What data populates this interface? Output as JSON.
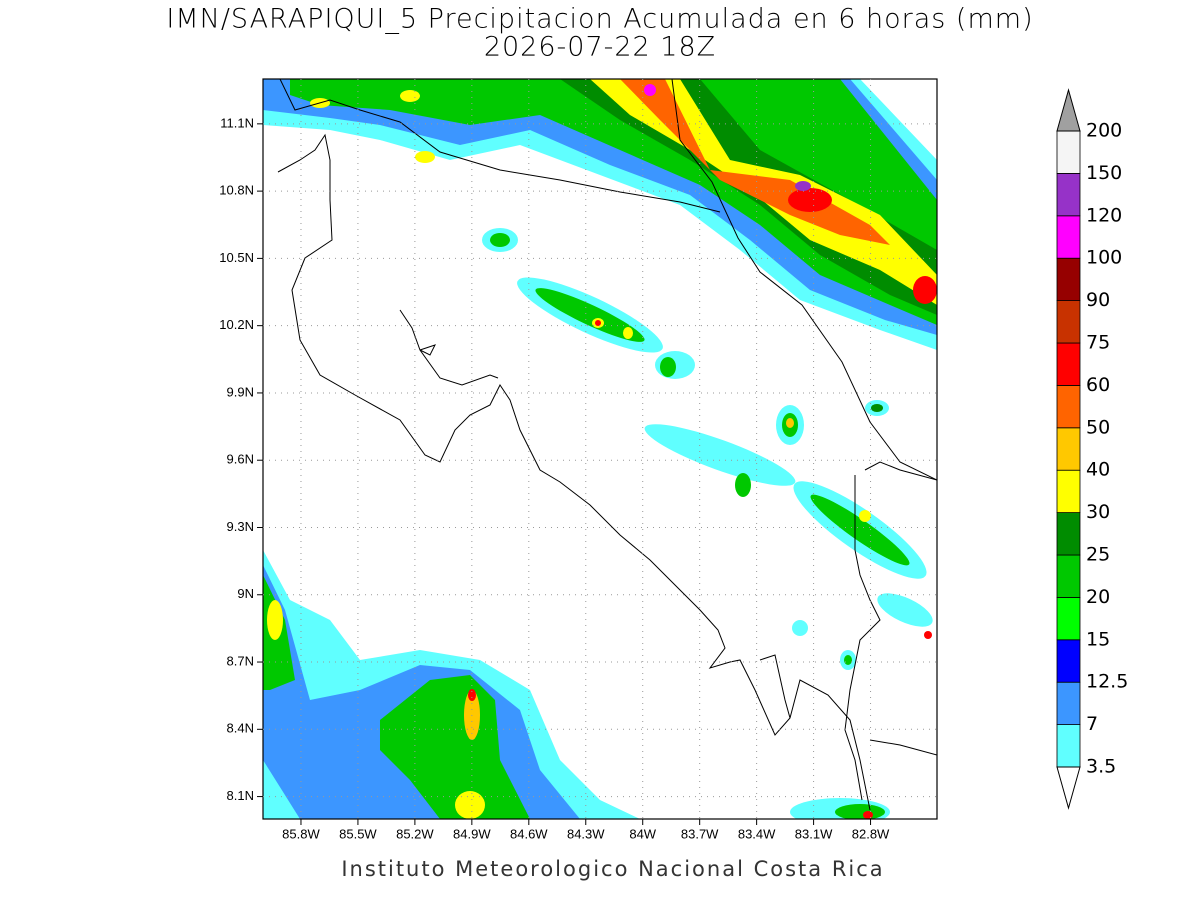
{
  "header": {
    "title": "IMN/SARAPIQUI_5 Precipitacion Acumulada en 6 horas (mm)",
    "subtitle": "2026-07-22 18Z"
  },
  "map": {
    "lon_range": [
      -86.0,
      -82.45
    ],
    "lat_range": [
      8.0,
      11.3
    ],
    "lon_ticks": [
      {
        "value": -85.8,
        "label": "85.8W"
      },
      {
        "value": -85.5,
        "label": "85.5W"
      },
      {
        "value": -85.2,
        "label": "85.2W"
      },
      {
        "value": -84.9,
        "label": "84.9W"
      },
      {
        "value": -84.6,
        "label": "84.6W"
      },
      {
        "value": -84.3,
        "label": "84.3W"
      },
      {
        "value": -84.0,
        "label": "84W"
      },
      {
        "value": -83.7,
        "label": "83.7W"
      },
      {
        "value": -83.4,
        "label": "83.4W"
      },
      {
        "value": -83.1,
        "label": "83.1W"
      },
      {
        "value": -82.8,
        "label": "82.8W"
      }
    ],
    "lat_ticks": [
      {
        "value": 11.1,
        "label": "11.1N"
      },
      {
        "value": 10.8,
        "label": "10.8N"
      },
      {
        "value": 10.5,
        "label": "10.5N"
      },
      {
        "value": 10.2,
        "label": "10.2N"
      },
      {
        "value": 9.9,
        "label": "9.9N"
      },
      {
        "value": 9.6,
        "label": "9.6N"
      },
      {
        "value": 9.3,
        "label": "9.3N"
      },
      {
        "value": 9.0,
        "label": "9N"
      },
      {
        "value": 8.7,
        "label": "8.7N"
      },
      {
        "value": 8.4,
        "label": "8.4N"
      },
      {
        "value": 8.1,
        "label": "8.1N"
      }
    ]
  },
  "colorbar": {
    "levels": [
      3.5,
      7,
      12.5,
      15,
      20,
      25,
      30,
      40,
      50,
      60,
      75,
      90,
      100,
      120,
      150,
      200
    ],
    "colors": [
      "#60ffff",
      "#3c96ff",
      "#0000ff",
      "#00ff00",
      "#00c800",
      "#008c00",
      "#ffff00",
      "#ffc800",
      "#ff6400",
      "#ff0000",
      "#c83200",
      "#960000",
      "#ff00ff",
      "#9632c8",
      "#f5f5f5"
    ],
    "under_color": "#ffffff",
    "over_color": "#a0a0a0"
  },
  "footer": {
    "credit": "Instituto Meteorologico Nacional Costa Rica"
  }
}
